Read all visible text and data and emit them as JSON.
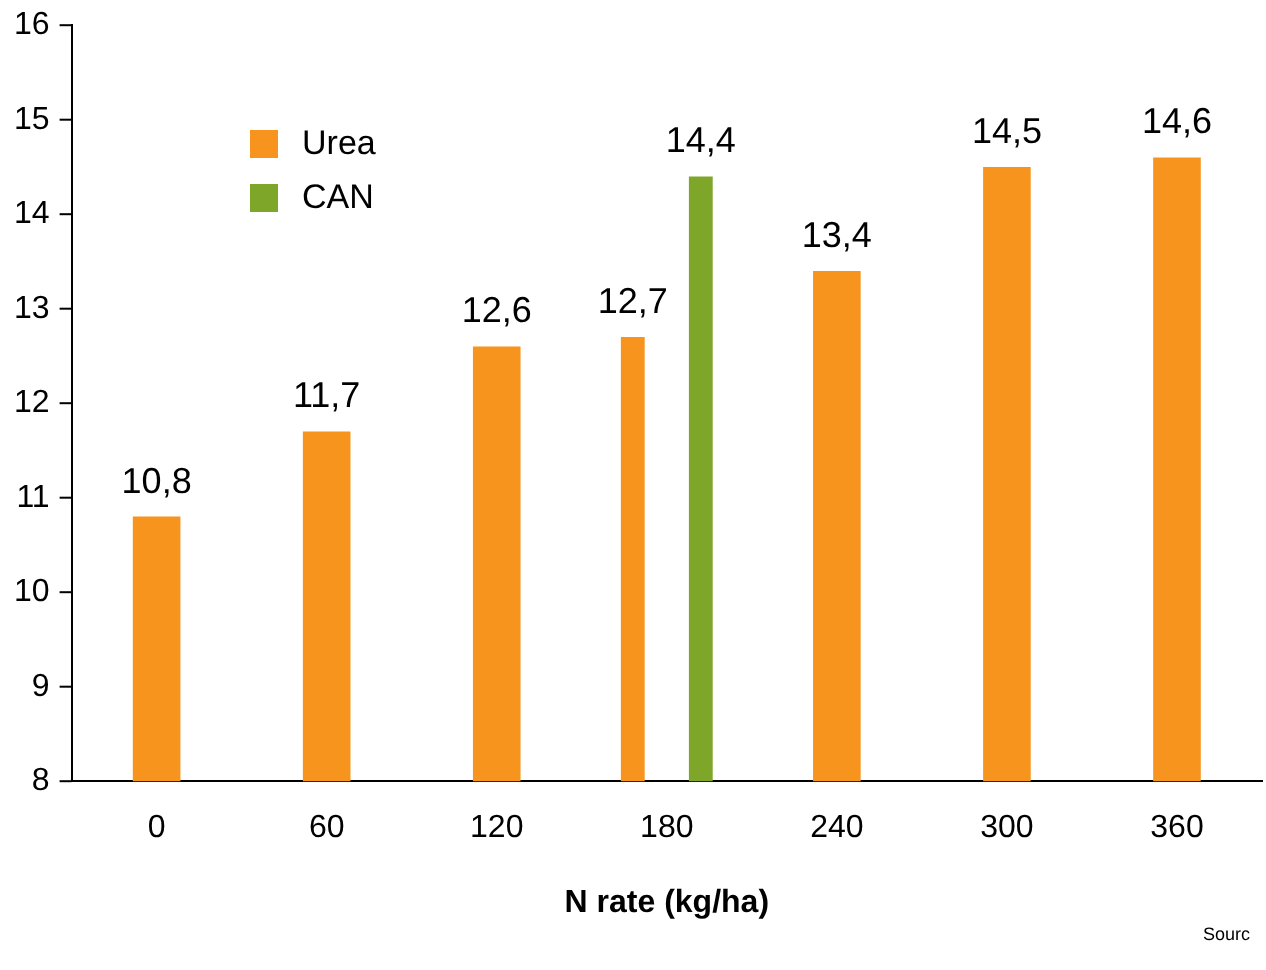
{
  "chart_data": {
    "type": "bar",
    "xlabel": "N rate (kg/ha)",
    "categories": [
      "0",
      "60",
      "120",
      "180",
      "240",
      "300",
      "360"
    ],
    "series": [
      {
        "name": "Urea",
        "color": "#f7941d",
        "values": [
          10.8,
          11.7,
          12.6,
          12.7,
          13.4,
          14.5,
          14.6
        ],
        "value_labels": [
          "10,8",
          "11,7",
          "12,6",
          "12,7",
          "13,4",
          "14,5",
          "14,6"
        ]
      },
      {
        "name": "CAN",
        "color": "#7ea72a",
        "values": [
          null,
          null,
          null,
          14.4,
          null,
          null,
          null
        ],
        "value_labels": [
          null,
          null,
          null,
          "14,4",
          null,
          null,
          null
        ]
      }
    ],
    "ylim": [
      8,
      16
    ],
    "yticks": [
      8,
      9,
      10,
      11,
      12,
      13,
      14,
      15,
      16
    ],
    "grid": false,
    "legend": "top left",
    "annotations": [
      "Sourc"
    ]
  }
}
